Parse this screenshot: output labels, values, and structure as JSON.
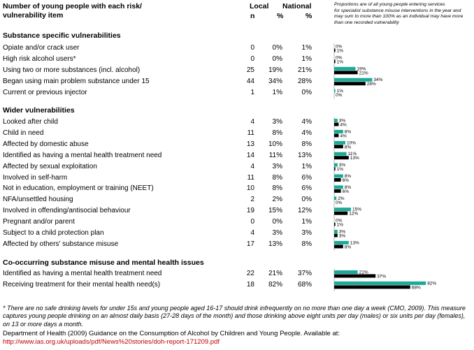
{
  "header": {
    "item_line1": "Number of young people with each risk/",
    "item_line2": "vulnerability item",
    "local_label": "Local",
    "national_label": "National",
    "n_label": "n",
    "pct_label": "%",
    "pct_label_national": "%",
    "note_lines": [
      "Proportions are of all young people entering services",
      "for specialist substance misuse interventions in the year and",
      "may sum to more than 100% as an individual may have more",
      "than one recorded vulnerability"
    ]
  },
  "colors": {
    "local_bar": "#1aaa96",
    "national_bar": "#000000"
  },
  "chart_data": {
    "type": "bar",
    "orientation": "horizontal",
    "series": [
      {
        "name": "Local",
        "color": "#1aaa96"
      },
      {
        "name": "National",
        "color": "#000000"
      }
    ],
    "sections": [
      {
        "title": "Substance specific vulnerabilities",
        "rows": [
          {
            "label": "Opiate and/or crack user",
            "n": "0",
            "local_pct": "0%",
            "national_pct": "1%",
            "local": 0,
            "national": 1
          },
          {
            "label": "High risk alcohol users*",
            "n": "0",
            "local_pct": "0%",
            "national_pct": "1%",
            "local": 0,
            "national": 1
          },
          {
            "label": "Using two or more substances (incl. alcohol)",
            "n": "25",
            "local_pct": "19%",
            "national_pct": "21%",
            "local": 19,
            "national": 21
          },
          {
            "label": "Began using main problem substance under 15",
            "n": "44",
            "local_pct": "34%",
            "national_pct": "28%",
            "local": 34,
            "national": 28
          },
          {
            "label": "Current or previous injector",
            "n": "1",
            "local_pct": "1%",
            "national_pct": "0%",
            "local": 1,
            "national": 0
          }
        ]
      },
      {
        "title": "Wider vulnerabilities",
        "rows": [
          {
            "label": "Looked after child",
            "n": "4",
            "local_pct": "3%",
            "national_pct": "4%",
            "local": 3,
            "national": 4
          },
          {
            "label": "Child in need",
            "n": "11",
            "local_pct": "8%",
            "national_pct": "4%",
            "local": 8,
            "national": 4
          },
          {
            "label": "Affected by domestic abuse",
            "n": "13",
            "local_pct": "10%",
            "national_pct": "8%",
            "local": 10,
            "national": 8
          },
          {
            "label": "Identified as having a mental health treatment need",
            "n": "14",
            "local_pct": "11%",
            "national_pct": "13%",
            "local": 11,
            "national": 13
          },
          {
            "label": "Affected by sexual exploitation",
            "n": "4",
            "local_pct": "3%",
            "national_pct": "1%",
            "local": 3,
            "national": 1
          },
          {
            "label": "Involved in self-harm",
            "n": "11",
            "local_pct": "8%",
            "national_pct": "6%",
            "local": 8,
            "national": 6
          },
          {
            "label": "Not in education, employment or training (NEET)",
            "n": "10",
            "local_pct": "8%",
            "national_pct": "6%",
            "local": 8,
            "national": 6
          },
          {
            "label": "NFA/unsettled housing",
            "n": "2",
            "local_pct": "2%",
            "national_pct": "0%",
            "local": 2,
            "national": 0
          },
          {
            "label": "Involved in offending/antisocial behaviour",
            "n": "19",
            "local_pct": "15%",
            "national_pct": "12%",
            "local": 15,
            "national": 12
          },
          {
            "label": "Pregnant and/or parent",
            "n": "0",
            "local_pct": "0%",
            "national_pct": "1%",
            "local": 0,
            "national": 1
          },
          {
            "label": "Subject to a child protection plan",
            "n": "4",
            "local_pct": "3%",
            "national_pct": "3%",
            "local": 3,
            "national": 3
          },
          {
            "label": "Affected by others' substance misuse",
            "n": "17",
            "local_pct": "13%",
            "national_pct": "8%",
            "local": 13,
            "national": 8
          }
        ]
      },
      {
        "title": "Co-occurring substance misuse and mental health issues",
        "rows": [
          {
            "label": "Identified as having a mental health treatment need",
            "n": "22",
            "local_pct": "21%",
            "national_pct": "37%",
            "local": 21,
            "national": 37
          },
          {
            "label": "Receiving treatment for their mental health need(s)",
            "n": "18",
            "local_pct": "82%",
            "national_pct": "68%",
            "local": 82,
            "national": 68
          }
        ]
      }
    ]
  },
  "footnote": "* There are no safe drinking levels for under 15s and young people aged 16-17 should drink infrequently on no more than one day a week (CMO, 2009). This measure captures young people drinking on an almost daily basis (27-28 days of the month) and those drinking above eight units per day (males) or six units per day (females), on 13 or more days a month.",
  "source": "Department of Health (2009) Guidance on the Consumption of Alcohol by Children and Young People. Available at:",
  "source_link": "http://www.ias.org.uk/uploads/pdf/News%20stories/doh-report-171209.pdf"
}
